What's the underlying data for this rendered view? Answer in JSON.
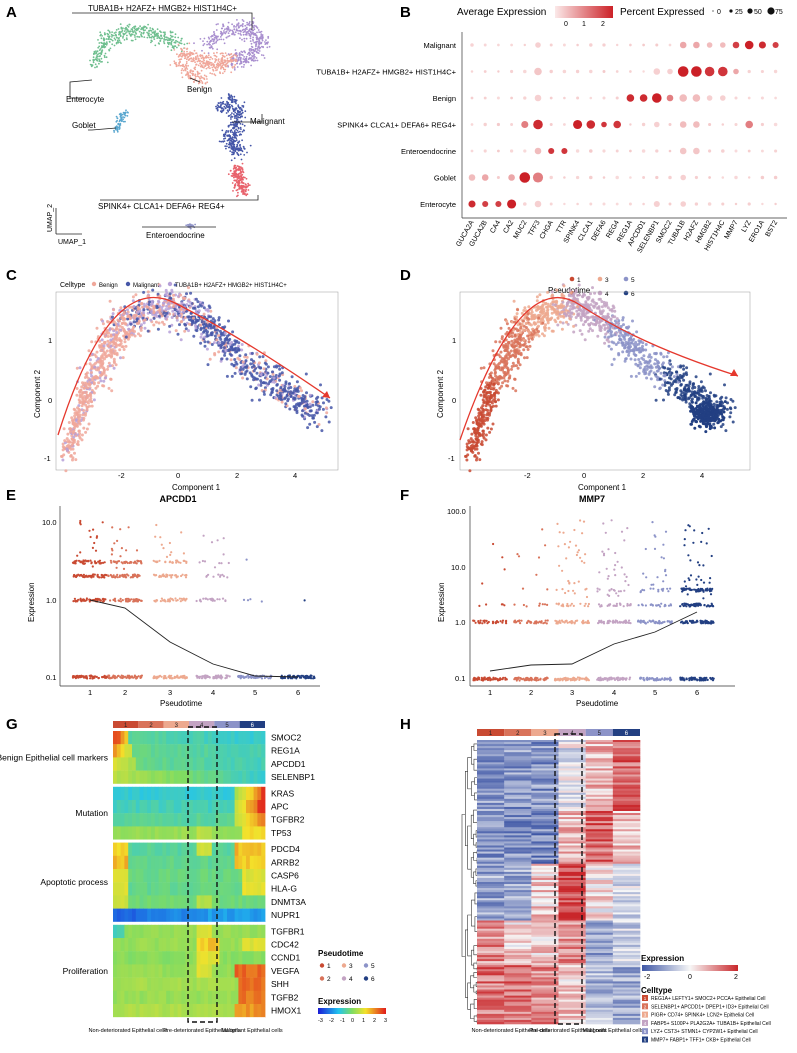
{
  "panels": {
    "A": "A",
    "B": "B",
    "C": "C",
    "D": "D",
    "E": "E",
    "F": "F",
    "G": "G",
    "H": "H"
  },
  "panelA": {
    "clusters": [
      {
        "name": "TUBA1B+ H2AFZ+ HMGB2+ HIST1H4C+",
        "color": "#a98fcf"
      },
      {
        "name": "Enterocyte",
        "color": "#6fbf8f"
      },
      {
        "name": "Benign",
        "color": "#f0a79a"
      },
      {
        "name": "Goblet",
        "color": "#5aa7cf"
      },
      {
        "name": "Malignant",
        "color": "#4556a8"
      },
      {
        "name": "SPINK4+ CLCA1+ DEFA6+ REG4+",
        "color": "#e8626c"
      },
      {
        "name": "Enteroendocrine",
        "color": "#8f93c7"
      }
    ],
    "axis_x": "UMAP_1",
    "axis_y": "UMAP_2"
  },
  "panelB": {
    "legend_expr_title": "Average Expression",
    "legend_expr_ticks": [
      "0",
      "1",
      "2"
    ],
    "legend_pct_title": "Percent Expressed",
    "legend_pct_ticks": [
      "0",
      "25",
      "50",
      "75"
    ],
    "rows": [
      "Malignant",
      "TUBA1B+ H2AFZ+ HMGB2+ HIST1H4C+",
      "Benign",
      "SPINK4+ CLCA1+ DEFA6+ REG4+",
      "Enteroendocrine",
      "Goblet",
      "Enterocyte"
    ],
    "genes": [
      "GUCA2A",
      "GUCA2B",
      "CA4",
      "CA2",
      "MUC2",
      "TFF3",
      "CHGA",
      "TTR",
      "SPINK4",
      "CLCA1",
      "DEFA6",
      "REG4",
      "REG1A",
      "APCDD1",
      "SELENBP1",
      "SMOC2",
      "TUBA1B",
      "H2AFZ",
      "HMGB2",
      "HIST1H4C",
      "MMP7",
      "LYZ",
      "ERO1A",
      "BST2"
    ]
  },
  "panelC": {
    "legend_title": "Celltype",
    "legend_items": [
      {
        "name": "Benign",
        "color": "#f0a79a"
      },
      {
        "name": "Malignant",
        "color": "#4556a8"
      },
      {
        "name": "TUBA1B+ H2AFZ+ HMGB2+ HIST1H4C+",
        "color": "#b6a0d8"
      }
    ],
    "xlabel": "Component 1",
    "ylabel": "Component 2",
    "xticks": [
      "-2",
      "0",
      "2",
      "4"
    ],
    "yticks": [
      "1",
      "0",
      "-1"
    ]
  },
  "panelD": {
    "legend_title": "Pseudotime",
    "legend_items": [
      {
        "name": "1",
        "color": "#c94a32"
      },
      {
        "name": "2",
        "color": "#d9735a"
      },
      {
        "name": "3",
        "color": "#eda98f"
      },
      {
        "name": "4",
        "color": "#c3a3c3"
      },
      {
        "name": "5",
        "color": "#8c93c8"
      },
      {
        "name": "6",
        "color": "#223f82"
      }
    ],
    "xlabel": "Component 1",
    "ylabel": "Component 2",
    "xticks": [
      "-2",
      "0",
      "2",
      "4"
    ],
    "yticks": [
      "1",
      "0",
      "-1"
    ]
  },
  "panelE": {
    "title": "APCDD1",
    "xlabel": "Pseudotime",
    "ylabel": "Expression",
    "yticks": [
      "10.0",
      "1.0",
      "0.1"
    ],
    "xticks": [
      "1",
      "2",
      "3",
      "4",
      "5",
      "6"
    ]
  },
  "panelF": {
    "title": "MMP7",
    "xlabel": "Pseudotime",
    "ylabel": "Expression",
    "yticks": [
      "100.0",
      "10.0",
      "1.0",
      "0.1"
    ],
    "xticks": [
      "1",
      "2",
      "3",
      "4",
      "5",
      "6"
    ]
  },
  "panelG": {
    "states": [
      "1",
      "2",
      "3",
      "4",
      "5",
      "6"
    ],
    "groups": [
      {
        "name": "Benign Epithelial cell markers",
        "genes": [
          "SMOC2",
          "REG1A",
          "APCDD1",
          "SELENBP1"
        ]
      },
      {
        "name": "Mutation",
        "genes": [
          "KRAS",
          "APC",
          "TGFBR2",
          "TP53"
        ]
      },
      {
        "name": "Apoptotic process",
        "genes": [
          "PDCD4",
          "ARRB2",
          "CASP6",
          "HLA-G",
          "DNMT3A",
          "NUPR1"
        ]
      },
      {
        "name": "Proliferation",
        "genes": [
          "TGFBR1",
          "CDC42",
          "CCND1",
          "VEGFA",
          "SHH",
          "TGFB2",
          "HMOX1"
        ]
      }
    ],
    "bottom_labels": [
      "Non-deteriorated Epithelial cells",
      "Pre-deteriorated Epithelial cells",
      "Malignant Epithelial cells"
    ],
    "legend_pseudotime_title": "Pseudotime",
    "legend_pseudotime_items": [
      "1",
      "2",
      "3",
      "4",
      "5",
      "6"
    ],
    "legend_expr_title": "Expression",
    "legend_expr_ticks": [
      "-3",
      "-2",
      "-1",
      "0",
      "1",
      "2",
      "3"
    ]
  },
  "panelH": {
    "states": [
      "1",
      "2",
      "3",
      "4",
      "5",
      "6"
    ],
    "bottom_labels": [
      "Non-deteriorated Epithelial cells",
      "Pre-deteriorated Epithelial cells",
      "Malignant Epithelial cells"
    ],
    "legend_expr_title": "Expression",
    "legend_expr_ticks": [
      "-2",
      "0",
      "2"
    ],
    "legend_celltype_title": "Celltype",
    "celltypes": [
      {
        "num": "1",
        "name": "REG1A+ LEFTY1+ SMOC2+ PCCA+ Epithelial Cell",
        "color": "#c94a32"
      },
      {
        "num": "2",
        "name": "SELENBP1+ APCDD1+ DPEP1+ ID3+ Epithelial Cell",
        "color": "#d9735a"
      },
      {
        "num": "3",
        "name": "PIGR+ CD74+ SPINK4+ LCN2+ Epithelial Cell",
        "color": "#eda98f"
      },
      {
        "num": "4",
        "name": "FABP5+ S100P+ PLA2G2A+ TUBA1B+ Epithelial Cell",
        "color": "#c3a3c3"
      },
      {
        "num": "5",
        "name": "LYZ+ CST3+ STMN1+ CYP2W1+ Epithelial Cell",
        "color": "#8c93c8"
      },
      {
        "num": "6",
        "name": "MMP7+ FABP1+ TFF1+ CKB+ Epithelial Cell",
        "color": "#223f82"
      }
    ]
  },
  "colors": {
    "state1": "#c94a32",
    "state2": "#d9735a",
    "state3": "#eda98f",
    "state4": "#c3a3c3",
    "state5": "#8c93c8",
    "state6": "#223f82",
    "arrow": "#e5382d"
  }
}
